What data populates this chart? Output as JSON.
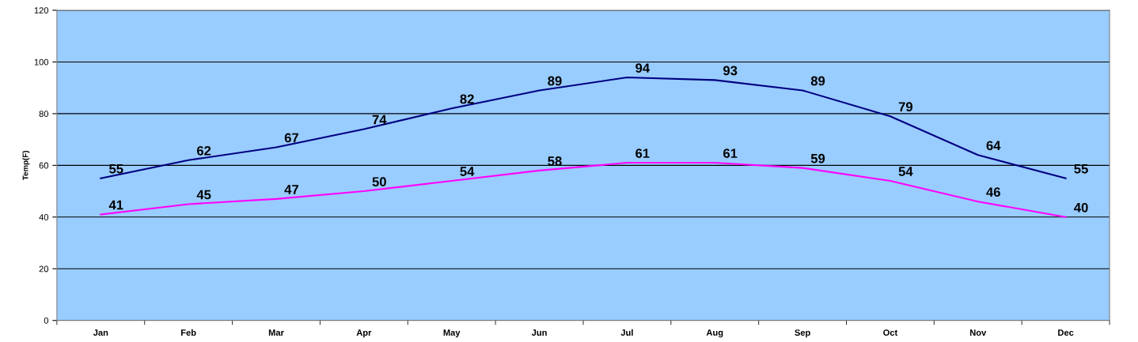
{
  "chart_data": {
    "type": "line",
    "ylabel": "Temp(F)",
    "categories": [
      "Jan",
      "Feb",
      "Mar",
      "Apr",
      "May",
      "Jun",
      "Jul",
      "Aug",
      "Sep",
      "Oct",
      "Nov",
      "Dec"
    ],
    "series": [
      {
        "color": "#000080",
        "values": [
          55,
          62,
          67,
          74,
          82,
          89,
          94,
          93,
          89,
          79,
          64,
          55
        ]
      },
      {
        "color": "#ff00ff",
        "values": [
          41,
          45,
          47,
          50,
          54,
          58,
          61,
          61,
          59,
          54,
          46,
          40
        ]
      }
    ],
    "ylim": [
      0,
      120
    ],
    "yticks": [
      0,
      20,
      40,
      60,
      80,
      100,
      120
    ],
    "grid": "y",
    "data_labels": true,
    "marker": "none",
    "line_style": "solid",
    "legend": false
  }
}
